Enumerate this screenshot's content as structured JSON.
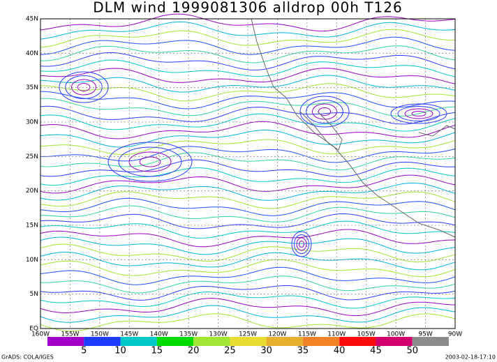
{
  "title": "DLM wind 1999081306 alldrop 00h T126",
  "lon_labels": [
    "160W",
    "155W",
    "150W",
    "145W",
    "140W",
    "135W",
    "130W",
    "125W",
    "120W",
    "115W",
    "110W",
    "105W",
    "100W",
    "95W",
    "90W"
  ],
  "lat_labels": [
    "EQ",
    "5N",
    "10N",
    "15N",
    "20N",
    "25N",
    "30N",
    "35N",
    "40N",
    "45N"
  ],
  "colorbar": {
    "labels": [
      5,
      10,
      15,
      20,
      25,
      30,
      35,
      40,
      45,
      50
    ],
    "colors": [
      "#a000c8",
      "#1e3cff",
      "#00c8c8",
      "#00dc00",
      "#a0e632",
      "#e6dc32",
      "#e6af2d",
      "#f08228",
      "#fa0a0a",
      "#d2006e",
      "#8c8c8c"
    ]
  },
  "footer_left": "GrADS: COLA/IGES",
  "footer_right": "2003-02-18-17:10"
}
